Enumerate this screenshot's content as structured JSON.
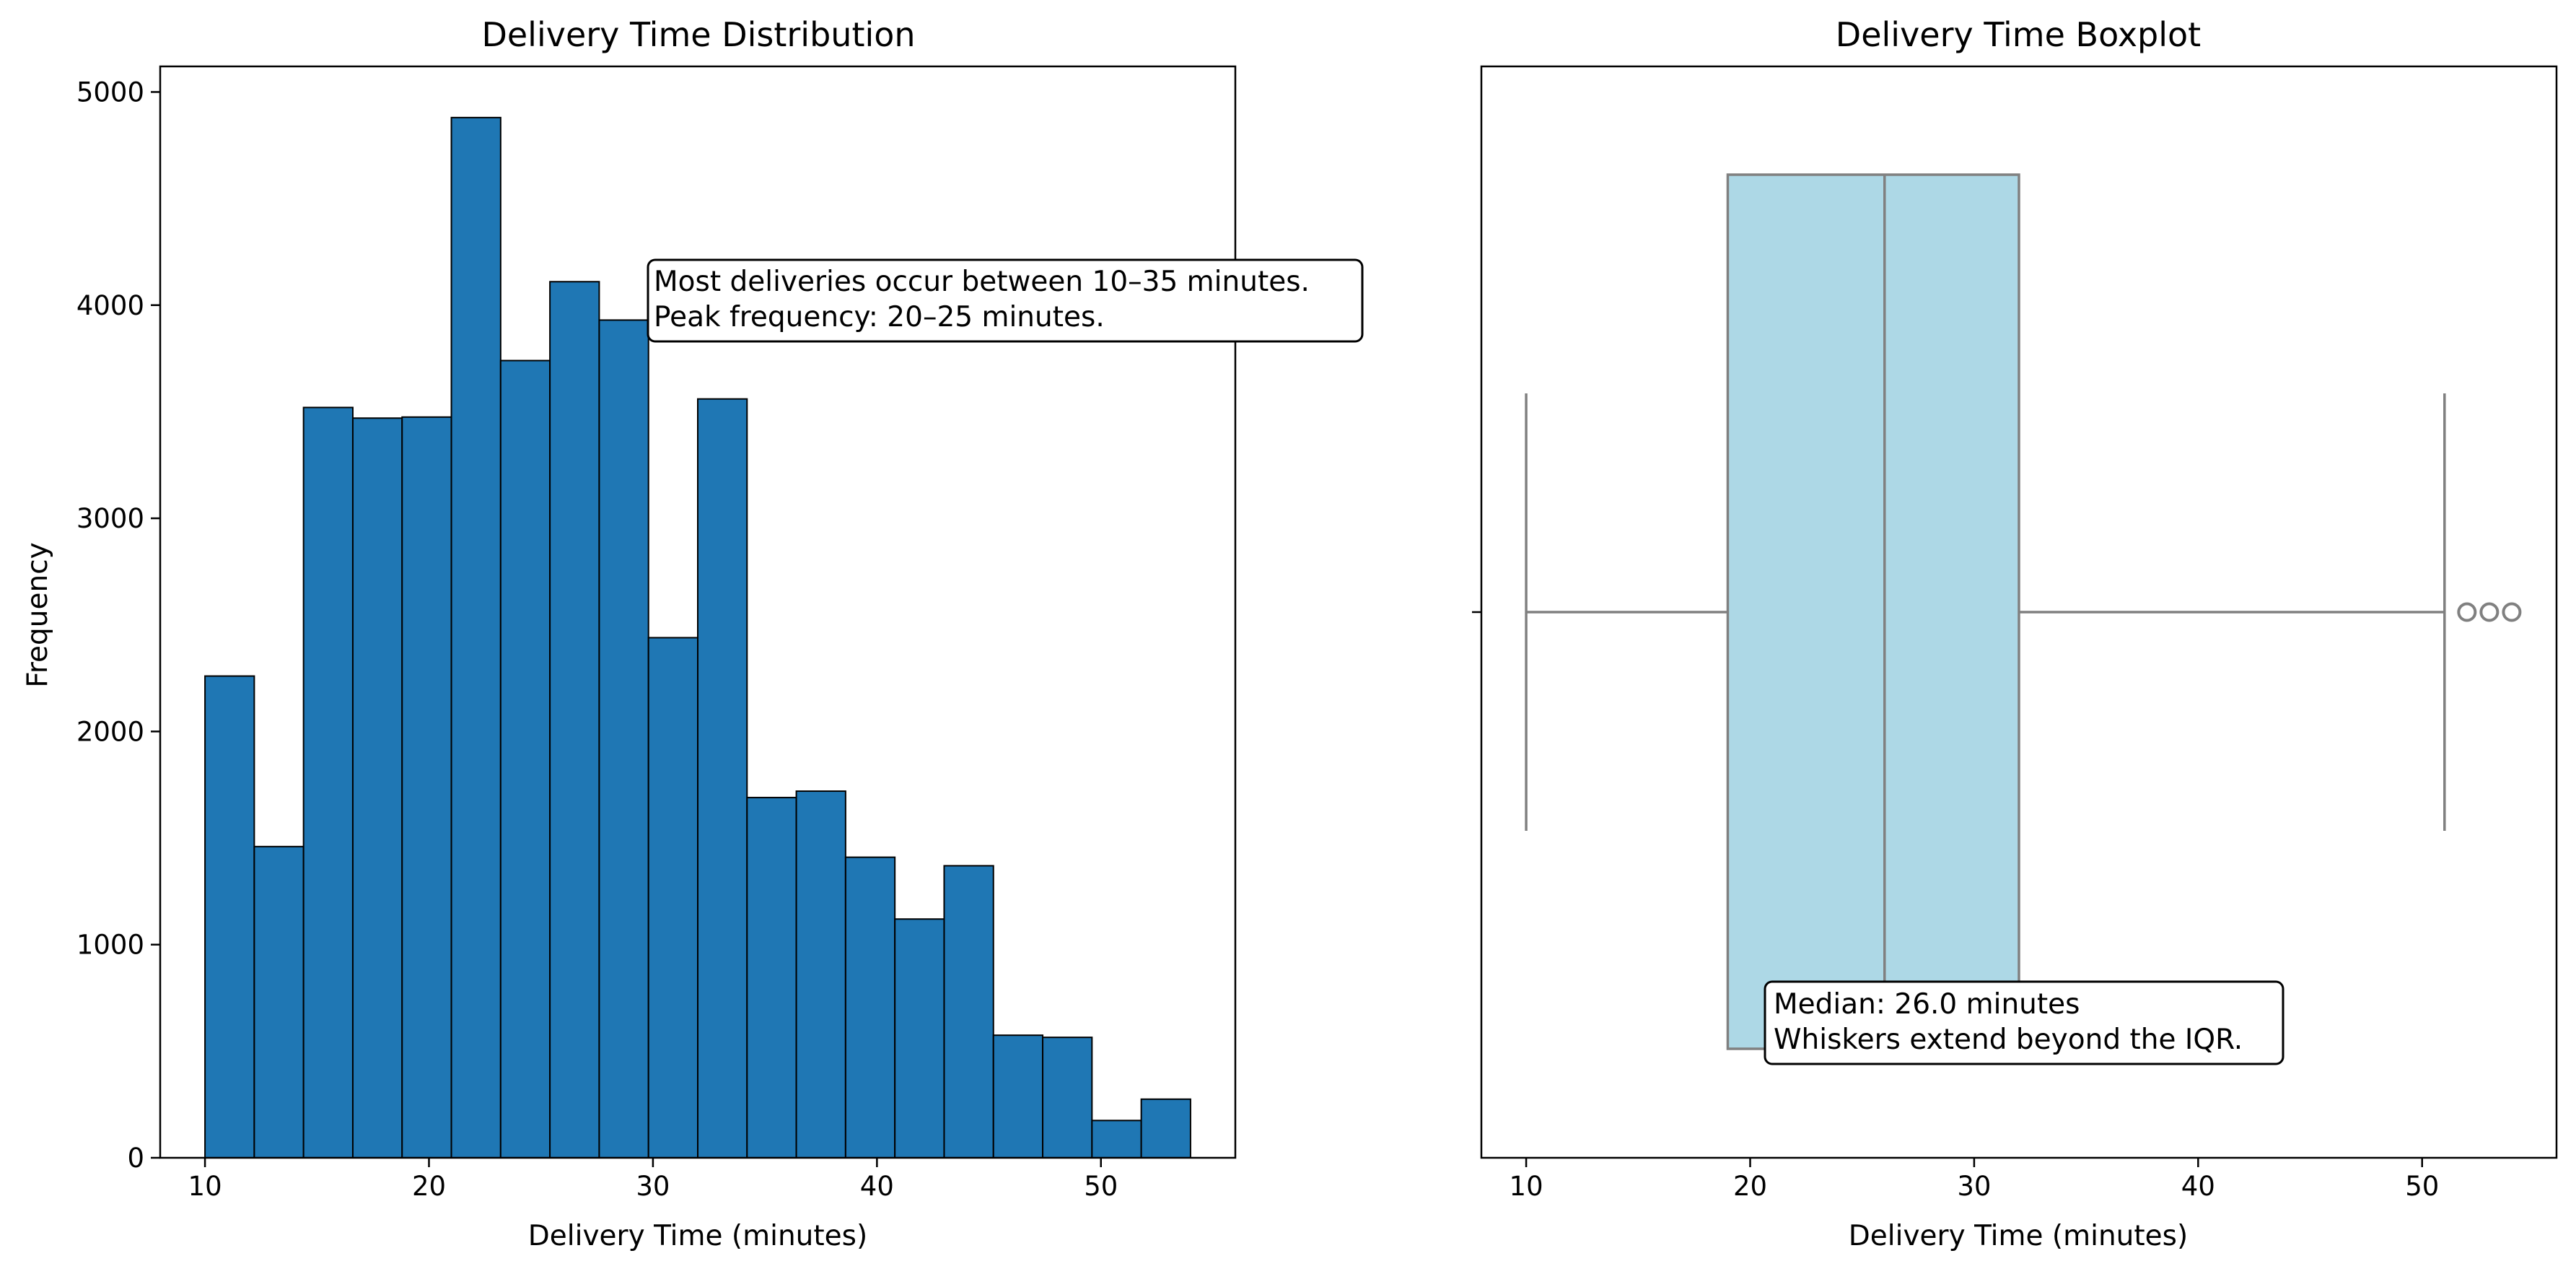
{
  "chart_data": [
    {
      "type": "bar",
      "title": "Delivery Time Distribution",
      "xlabel": "Delivery Time (minutes)",
      "ylabel": "Frequency",
      "xlim": [
        8,
        56
      ],
      "ylim": [
        0,
        5120
      ],
      "x_ticks": [
        10,
        20,
        30,
        40,
        50
      ],
      "y_ticks": [
        0,
        1000,
        2000,
        3000,
        4000,
        5000
      ],
      "bin_edges": [
        10,
        12.2,
        14.4,
        16.6,
        18.8,
        21,
        23.2,
        25.4,
        27.6,
        29.8,
        32,
        34.2,
        36.4,
        38.6,
        40.8,
        43,
        45.2,
        47.4,
        49.6,
        51.8,
        54
      ],
      "values": [
        2260,
        1460,
        3520,
        3470,
        3475,
        4880,
        3740,
        4110,
        3930,
        2440,
        3560,
        1690,
        1720,
        1410,
        1120,
        1370,
        575,
        565,
        175,
        275
      ],
      "bar_color": "#1f77b4",
      "edge_color": "#000000",
      "grid": false,
      "annotation": {
        "line1": "Most deliveries occur between 10–35 minutes.",
        "line2": "Peak frequency: 20–25 minutes."
      }
    },
    {
      "type": "boxplot",
      "title": "Delivery Time Boxplot",
      "xlabel": "Delivery Time (minutes)",
      "xlim": [
        8,
        56
      ],
      "x_ticks": [
        10,
        20,
        30,
        40,
        50
      ],
      "whisker_low": 10,
      "q1": 19,
      "median": 26,
      "q3": 32,
      "whisker_high": 51,
      "outliers": [
        52,
        53,
        54
      ],
      "box_color": "#add8e6",
      "line_color": "#808080",
      "grid": false,
      "annotation": {
        "line1": "Median: 26.0 minutes",
        "line2": "Whiskers extend beyond the IQR."
      }
    }
  ]
}
